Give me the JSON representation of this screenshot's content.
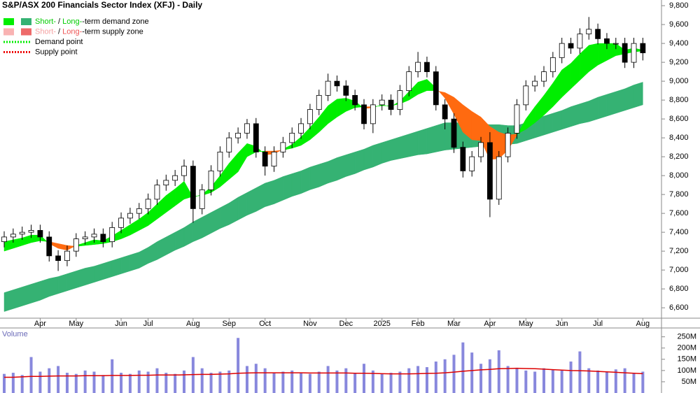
{
  "chart_data": {
    "type": "candlestick",
    "title": "S&P/ASX 200 Financials Sector Index (XFJ) - Daily",
    "categories": [
      null,
      null,
      null,
      null,
      "Apr",
      null,
      null,
      null,
      "May",
      null,
      null,
      null,
      null,
      "Jun",
      null,
      null,
      "Jul",
      null,
      null,
      null,
      null,
      "Aug",
      null,
      null,
      null,
      "Sep",
      null,
      null,
      null,
      "Oct",
      null,
      null,
      null,
      null,
      "Nov",
      null,
      null,
      null,
      "Dec",
      null,
      null,
      null,
      "2025",
      null,
      null,
      null,
      "Feb",
      null,
      null,
      null,
      "Mar",
      null,
      null,
      null,
      "Apr",
      null,
      null,
      null,
      "May",
      null,
      null,
      null,
      "Jun",
      null,
      null,
      null,
      "Jul",
      null,
      null,
      null,
      null,
      "Aug"
    ],
    "open": [
      7300,
      7350,
      7380,
      7400,
      7420,
      7350,
      7150,
      7100,
      7200,
      7330,
      7350,
      7380,
      7300,
      7450,
      7550,
      7600,
      7650,
      7750,
      7900,
      7950,
      8000,
      8100,
      7650,
      7850,
      8050,
      8250,
      8400,
      8450,
      8550,
      8250,
      8100,
      8250,
      8350,
      8450,
      8550,
      8700,
      8850,
      9000,
      8950,
      8850,
      8750,
      8550,
      8750,
      8800,
      8700,
      8900,
      9100,
      9200,
      9100,
      8750,
      8600,
      8300,
      8050,
      8200,
      8350,
      7750,
      8200,
      8450,
      8750,
      8950,
      9000,
      9100,
      9250,
      9400,
      9350,
      9500,
      9550,
      9450,
      9400,
      9400,
      9200,
      9400
    ],
    "high": [
      7410,
      7440,
      7460,
      7480,
      7480,
      7410,
      7210,
      7260,
      7390,
      7410,
      7440,
      7440,
      7510,
      7610,
      7660,
      7710,
      7810,
      7960,
      8010,
      8060,
      8170,
      8160,
      7910,
      8110,
      8310,
      8460,
      8510,
      8600,
      8610,
      8310,
      8310,
      8410,
      8510,
      8610,
      8760,
      8910,
      9080,
      9060,
      9010,
      8910,
      8810,
      8810,
      8860,
      8860,
      8960,
      9160,
      9310,
      9260,
      9160,
      8810,
      8660,
      8360,
      8260,
      8410,
      8460,
      8260,
      8510,
      8810,
      9010,
      9060,
      9160,
      9310,
      9460,
      9460,
      9560,
      9680,
      9610,
      9510,
      9460,
      9460,
      9460,
      9460
    ],
    "low": [
      7240,
      7290,
      7320,
      7340,
      7290,
      7090,
      6990,
      7040,
      7140,
      7270,
      7290,
      7240,
      7240,
      7390,
      7490,
      7540,
      7590,
      7690,
      7840,
      7890,
      7940,
      7500,
      7590,
      7790,
      7990,
      8190,
      8340,
      8390,
      8190,
      8000,
      8040,
      8190,
      8290,
      8390,
      8490,
      8640,
      8790,
      8890,
      8790,
      8690,
      8490,
      8450,
      8690,
      8640,
      8640,
      8840,
      9040,
      9040,
      8690,
      8490,
      8240,
      7980,
      7990,
      8140,
      7560,
      7690,
      8140,
      8390,
      8690,
      8890,
      8940,
      9040,
      9190,
      9290,
      9290,
      9440,
      9390,
      9340,
      9340,
      9140,
      9140,
      9220
    ],
    "close": [
      7350,
      7380,
      7400,
      7420,
      7350,
      7150,
      7100,
      7200,
      7330,
      7350,
      7380,
      7300,
      7450,
      7550,
      7600,
      7650,
      7750,
      7900,
      7950,
      8000,
      8100,
      7650,
      7850,
      8050,
      8250,
      8400,
      8450,
      8550,
      8250,
      8100,
      8250,
      8350,
      8450,
      8550,
      8700,
      8850,
      9000,
      8950,
      8850,
      8750,
      8550,
      8750,
      8800,
      8700,
      8900,
      9100,
      9200,
      9100,
      8750,
      8600,
      8300,
      8050,
      8200,
      8350,
      7750,
      8200,
      8450,
      8750,
      8950,
      9000,
      9100,
      9250,
      9400,
      9350,
      9500,
      9550,
      9450,
      9400,
      9400,
      9200,
      9400,
      9300
    ],
    "up_color": "#ffffff",
    "down_color": "#000000",
    "short_term_band": {
      "fast": [
        7300,
        7320,
        7340,
        7370,
        7370,
        7280,
        7230,
        7210,
        7260,
        7290,
        7320,
        7310,
        7360,
        7420,
        7480,
        7540,
        7610,
        7700,
        7790,
        7860,
        7940,
        7770,
        7800,
        7880,
        8000,
        8130,
        8240,
        8340,
        8310,
        8220,
        8230,
        8280,
        8330,
        8410,
        8510,
        8620,
        8740,
        8810,
        8820,
        8790,
        8710,
        8720,
        8750,
        8730,
        8790,
        8890,
        8990,
        9020,
        8930,
        8820,
        8650,
        8460,
        8380,
        8370,
        8170,
        8180,
        8270,
        8430,
        8600,
        8730,
        8850,
        8980,
        9120,
        9190,
        9290,
        9380,
        9400,
        9400,
        9400,
        9330,
        9350,
        9330
      ],
      "slow": [
        7200,
        7230,
        7260,
        7290,
        7310,
        7300,
        7280,
        7260,
        7250,
        7260,
        7270,
        7280,
        7300,
        7330,
        7370,
        7420,
        7470,
        7540,
        7610,
        7680,
        7750,
        7780,
        7790,
        7820,
        7880,
        7960,
        8040,
        8200,
        8250,
        8260,
        8260,
        8270,
        8290,
        8320,
        8380,
        8460,
        8550,
        8620,
        8680,
        8720,
        8730,
        8730,
        8740,
        8740,
        8760,
        8800,
        8860,
        8900,
        8900,
        8880,
        8830,
        8750,
        8680,
        8620,
        8520,
        8460,
        8430,
        8440,
        8490,
        8560,
        8640,
        8730,
        8830,
        8920,
        9010,
        9100,
        9170,
        9220,
        9270,
        9290,
        9310,
        9320
      ],
      "up_color": "#00ee00",
      "down_color": "#ff6a10"
    },
    "long_term_band": {
      "fast": [
        6760,
        6790,
        6820,
        6850,
        6880,
        6910,
        6930,
        6960,
        6990,
        7020,
        7040,
        7070,
        7100,
        7130,
        7160,
        7190,
        7240,
        7300,
        7350,
        7400,
        7450,
        7510,
        7560,
        7610,
        7660,
        7710,
        7770,
        7820,
        7870,
        7920,
        7950,
        7990,
        8020,
        8050,
        8090,
        8120,
        8150,
        8190,
        8220,
        8250,
        8280,
        8320,
        8350,
        8380,
        8410,
        8440,
        8470,
        8500,
        8530,
        8560,
        8560,
        8560,
        8550,
        8550,
        8540,
        8540,
        8530,
        8530,
        8560,
        8600,
        8630,
        8660,
        8690,
        8730,
        8760,
        8790,
        8830,
        8860,
        8890,
        8920,
        8960,
        8990
      ],
      "slow": [
        6560,
        6590,
        6620,
        6650,
        6680,
        6720,
        6750,
        6780,
        6810,
        6840,
        6870,
        6900,
        6930,
        6960,
        6990,
        7020,
        7070,
        7110,
        7160,
        7210,
        7250,
        7300,
        7340,
        7390,
        7440,
        7480,
        7530,
        7580,
        7620,
        7670,
        7700,
        7740,
        7780,
        7810,
        7850,
        7880,
        7920,
        7950,
        7990,
        8020,
        8060,
        8090,
        8130,
        8160,
        8180,
        8200,
        8220,
        8230,
        8250,
        8270,
        8280,
        8290,
        8300,
        8310,
        8320,
        8320,
        8330,
        8340,
        8370,
        8400,
        8430,
        8460,
        8490,
        8520,
        8550,
        8570,
        8600,
        8630,
        8660,
        8690,
        8720,
        8750
      ],
      "up_color": "#35b273",
      "down_color": "#ff6a10"
    },
    "ylim": [
      6490,
      9860
    ],
    "yticks": [
      {
        "value": 6600,
        "label": "6,600"
      },
      {
        "value": 6800,
        "label": "6,800"
      },
      {
        "value": 7000,
        "label": "7,000"
      },
      {
        "value": 7200,
        "label": "7,200"
      },
      {
        "value": 7400,
        "label": "7,400"
      },
      {
        "value": 7600,
        "label": "7,600"
      },
      {
        "value": 7800,
        "label": "7,800"
      },
      {
        "value": 8000,
        "label": "8,000"
      },
      {
        "value": 8200,
        "label": "8,200"
      },
      {
        "value": 8400,
        "label": "8,400"
      },
      {
        "value": 8600,
        "label": "8,600"
      },
      {
        "value": 8800,
        "label": "8,800"
      },
      {
        "value": 9000,
        "label": "9,000"
      },
      {
        "value": 9200,
        "label": "9,200"
      },
      {
        "value": 9400,
        "label": "9,400"
      },
      {
        "value": 9600,
        "label": "9,600"
      },
      {
        "value": 9800,
        "label": "9,800"
      }
    ],
    "legend": [
      {
        "swatches": [
          "#00ee00",
          "#35b273"
        ],
        "parts": [
          "Short-",
          " / ",
          "Long-",
          "-term demand zone"
        ],
        "part_colors": [
          "#00cc00",
          "#000000",
          "#00cc00",
          "#000000"
        ]
      },
      {
        "swatches": [
          "#f9b3b3",
          "#ee6a6a"
        ],
        "parts": [
          "Short-",
          " / ",
          "Long-",
          "-term supply zone"
        ],
        "part_colors": [
          "#f4a0a0",
          "#000000",
          "#ee5555",
          "#000000"
        ]
      },
      {
        "line": "#00ee00",
        "parts": [
          "Demand point"
        ],
        "part_colors": [
          "#000000"
        ]
      },
      {
        "line": "#ee0000",
        "parts": [
          "Supply point"
        ],
        "part_colors": [
          "#000000"
        ]
      }
    ],
    "volume": {
      "label": "Volume",
      "values": [
        85,
        90,
        80,
        160,
        95,
        110,
        120,
        90,
        85,
        100,
        95,
        80,
        150,
        90,
        85,
        100,
        95,
        110,
        90,
        85,
        100,
        160,
        110,
        90,
        95,
        100,
        245,
        120,
        130,
        110,
        90,
        95,
        100,
        90,
        85,
        95,
        120,
        100,
        110,
        90,
        130,
        100,
        85,
        90,
        95,
        110,
        120,
        115,
        140,
        150,
        170,
        225,
        180,
        130,
        150,
        190,
        120,
        110,
        100,
        95,
        110,
        105,
        100,
        140,
        185,
        110,
        100,
        95,
        105,
        110,
        90,
        95
      ],
      "ma": [
        70,
        70,
        72,
        74,
        74,
        75,
        76,
        76,
        76,
        77,
        77,
        77,
        78,
        78,
        78,
        79,
        79,
        80,
        80,
        80,
        81,
        82,
        83,
        83,
        84,
        85,
        88,
        89,
        90,
        90,
        90,
        90,
        90,
        90,
        89,
        89,
        89,
        89,
        89,
        88,
        88,
        87,
        86,
        85,
        85,
        85,
        86,
        87,
        88,
        90,
        93,
        97,
        100,
        103,
        105,
        108,
        109,
        110,
        109,
        108,
        106,
        104,
        102,
        100,
        99,
        98,
        96,
        94,
        92,
        90,
        88,
        86
      ],
      "color": "#8888dd",
      "ma_color": "#dd0000",
      "ylim": [
        0,
        280
      ],
      "yticks": [
        {
          "value": 50,
          "label": "50M"
        },
        {
          "value": 100,
          "label": "100M"
        },
        {
          "value": 150,
          "label": "150M"
        },
        {
          "value": 200,
          "label": "200M"
        },
        {
          "value": 250,
          "label": "250M"
        }
      ]
    }
  }
}
